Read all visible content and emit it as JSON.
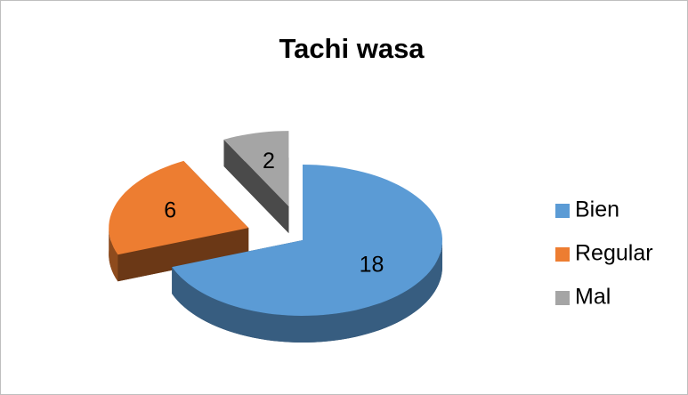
{
  "chart_data": {
    "type": "pie",
    "title": "Tachi wasa",
    "categories": [
      "Bien",
      "Regular",
      "Mal"
    ],
    "values": [
      18,
      6,
      2
    ],
    "colors": [
      "#5b9bd5",
      "#ed7d31",
      "#a5a5a5"
    ],
    "legend": "right",
    "three_d": true
  }
}
